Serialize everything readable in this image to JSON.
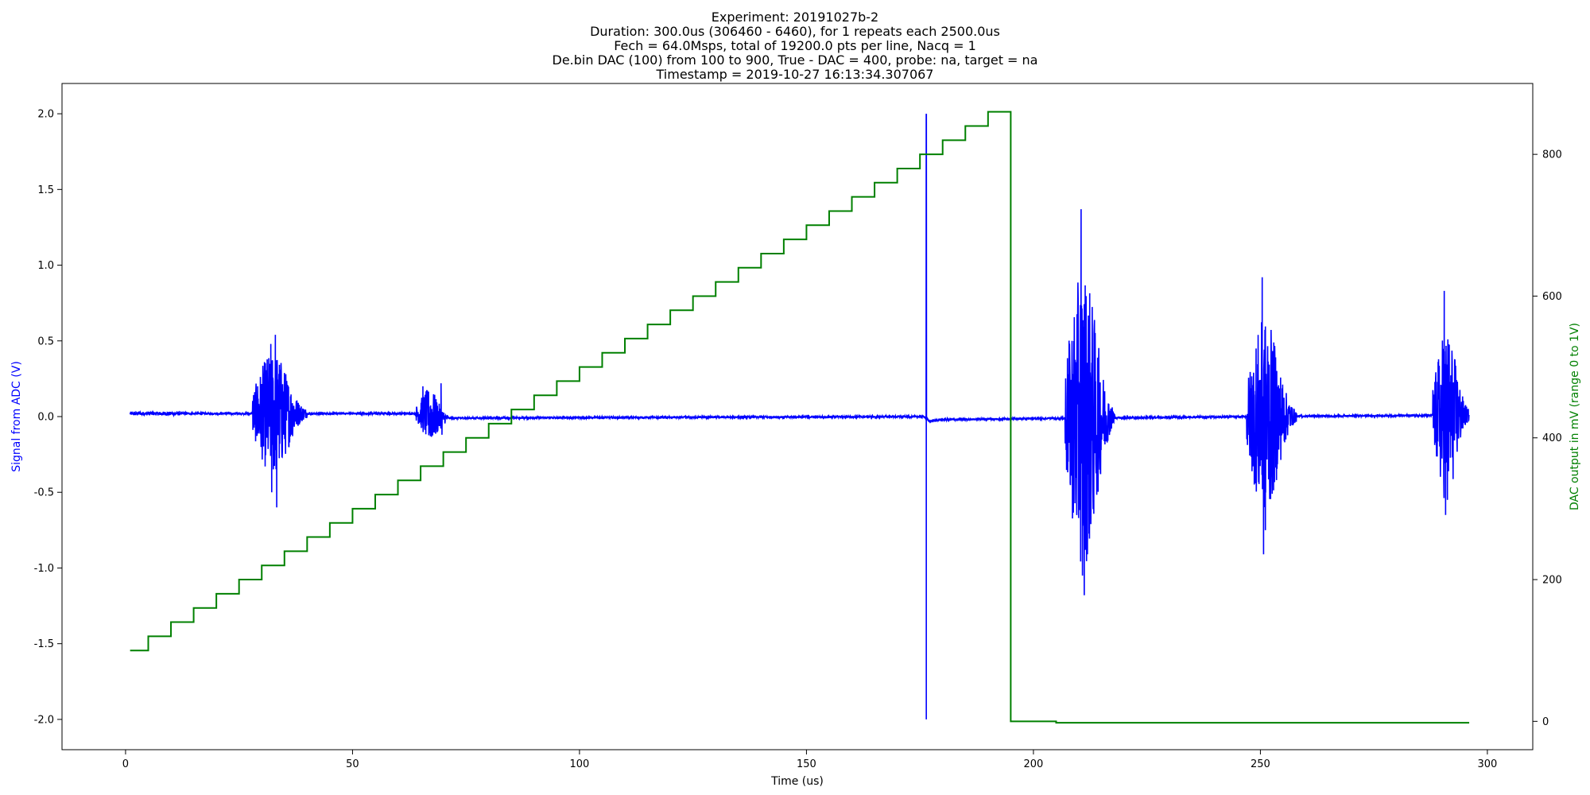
{
  "chart_data": {
    "type": "line",
    "title_lines": [
      "Experiment: 20191027b-2",
      "Duration: 300.0us (306460 - 6460), for 1 repeats each 2500.0us",
      "Fech = 64.0Msps, total of 19200.0 pts per line, Nacq = 1",
      "De.bin DAC (100) from 100 to 900, True - DAC = 400, probe: na, target = na",
      "Timestamp = 2019-10-27 16:13:34.307067"
    ],
    "xlabel": "Time (us)",
    "ylabel_left": "Signal from ADC (V)",
    "ylabel_right": "DAC output in mV (range 0 to 1V)",
    "xlim": [
      -14,
      310
    ],
    "ylim_left": [
      -2.2,
      2.2
    ],
    "ylim_right": [
      -40,
      900
    ],
    "x_ticks": [
      0,
      50,
      100,
      150,
      200,
      250,
      300
    ],
    "y_ticks_left": [
      "-2.0",
      "-1.5",
      "-1.0",
      "-0.5",
      "0.0",
      "0.5",
      "1.0",
      "1.5",
      "2.0"
    ],
    "y_ticks_right": [
      0,
      200,
      400,
      600,
      800
    ],
    "grid": false,
    "colors": {
      "adc": "#0000ff",
      "dac": "#008000",
      "axes": "#000000"
    },
    "series": [
      {
        "axis": "left",
        "baseline": [
          [
            1,
            0.02
          ],
          [
            30,
            0.02
          ],
          [
            65,
            0.02
          ],
          [
            70,
            -0.01
          ],
          [
            176,
            0.0
          ],
          [
            177,
            -0.03
          ],
          [
            180,
            -0.02
          ],
          [
            210,
            -0.01
          ],
          [
            250,
            0.0
          ],
          [
            296,
            0.01
          ]
        ],
        "bursts": [
          {
            "start": 28,
            "end": 40,
            "center": 32.5,
            "amplitude": 0.55,
            "peaks": [
              [
                32,
                0.48
              ],
              [
                33,
                0.54
              ],
              [
                33.3,
                -0.6
              ],
              [
                32.2,
                -0.5
              ]
            ]
          },
          {
            "start": 64,
            "end": 71,
            "center": 67,
            "amplitude": 0.22,
            "peaks": [
              [
                65.5,
                0.2
              ],
              [
                69.5,
                0.22
              ],
              [
                69.7,
                -0.12
              ]
            ]
          },
          {
            "start": 207,
            "end": 218,
            "center": 211,
            "amplitude": 1.3,
            "peaks": [
              [
                210.5,
                1.37
              ],
              [
                210.8,
                -1.05
              ],
              [
                211.2,
                -1.18
              ]
            ]
          },
          {
            "start": 247,
            "end": 258,
            "center": 251,
            "amplitude": 0.85,
            "peaks": [
              [
                250.4,
                0.92
              ],
              [
                250.7,
                -0.91
              ],
              [
                251.1,
                -0.75
              ]
            ]
          },
          {
            "start": 288,
            "end": 296,
            "center": 291,
            "amplitude": 0.75,
            "peaks": [
              [
                290.5,
                0.83
              ],
              [
                290.8,
                -0.65
              ],
              [
                291.2,
                -0.55
              ]
            ]
          }
        ],
        "spike": {
          "x": 176.4,
          "high": 2.0,
          "low": -2.0
        }
      },
      {
        "axis": "right",
        "steps": [
          [
            1,
            100
          ],
          [
            5,
            120
          ],
          [
            10,
            140
          ],
          [
            15,
            160
          ],
          [
            20,
            180
          ],
          [
            25,
            200
          ],
          [
            30,
            220
          ],
          [
            35,
            240
          ],
          [
            40,
            260
          ],
          [
            45,
            280
          ],
          [
            50,
            300
          ],
          [
            55,
            320
          ],
          [
            60,
            340
          ],
          [
            65,
            360
          ],
          [
            70,
            380
          ],
          [
            75,
            400
          ],
          [
            80,
            420
          ],
          [
            85,
            440
          ],
          [
            90,
            460
          ],
          [
            95,
            480
          ],
          [
            100,
            500
          ],
          [
            105,
            520
          ],
          [
            110,
            540
          ],
          [
            115,
            560
          ],
          [
            120,
            580
          ],
          [
            125,
            600
          ],
          [
            130,
            620
          ],
          [
            135,
            640
          ],
          [
            140,
            660
          ],
          [
            145,
            680
          ],
          [
            150,
            700
          ],
          [
            155,
            720
          ],
          [
            160,
            740
          ],
          [
            165,
            760
          ],
          [
            170,
            780
          ],
          [
            175,
            800
          ],
          [
            180,
            820
          ],
          [
            185,
            840
          ],
          [
            190,
            860
          ],
          [
            195,
            0
          ],
          [
            205,
            -2
          ],
          [
            296,
            -2
          ]
        ]
      }
    ]
  }
}
